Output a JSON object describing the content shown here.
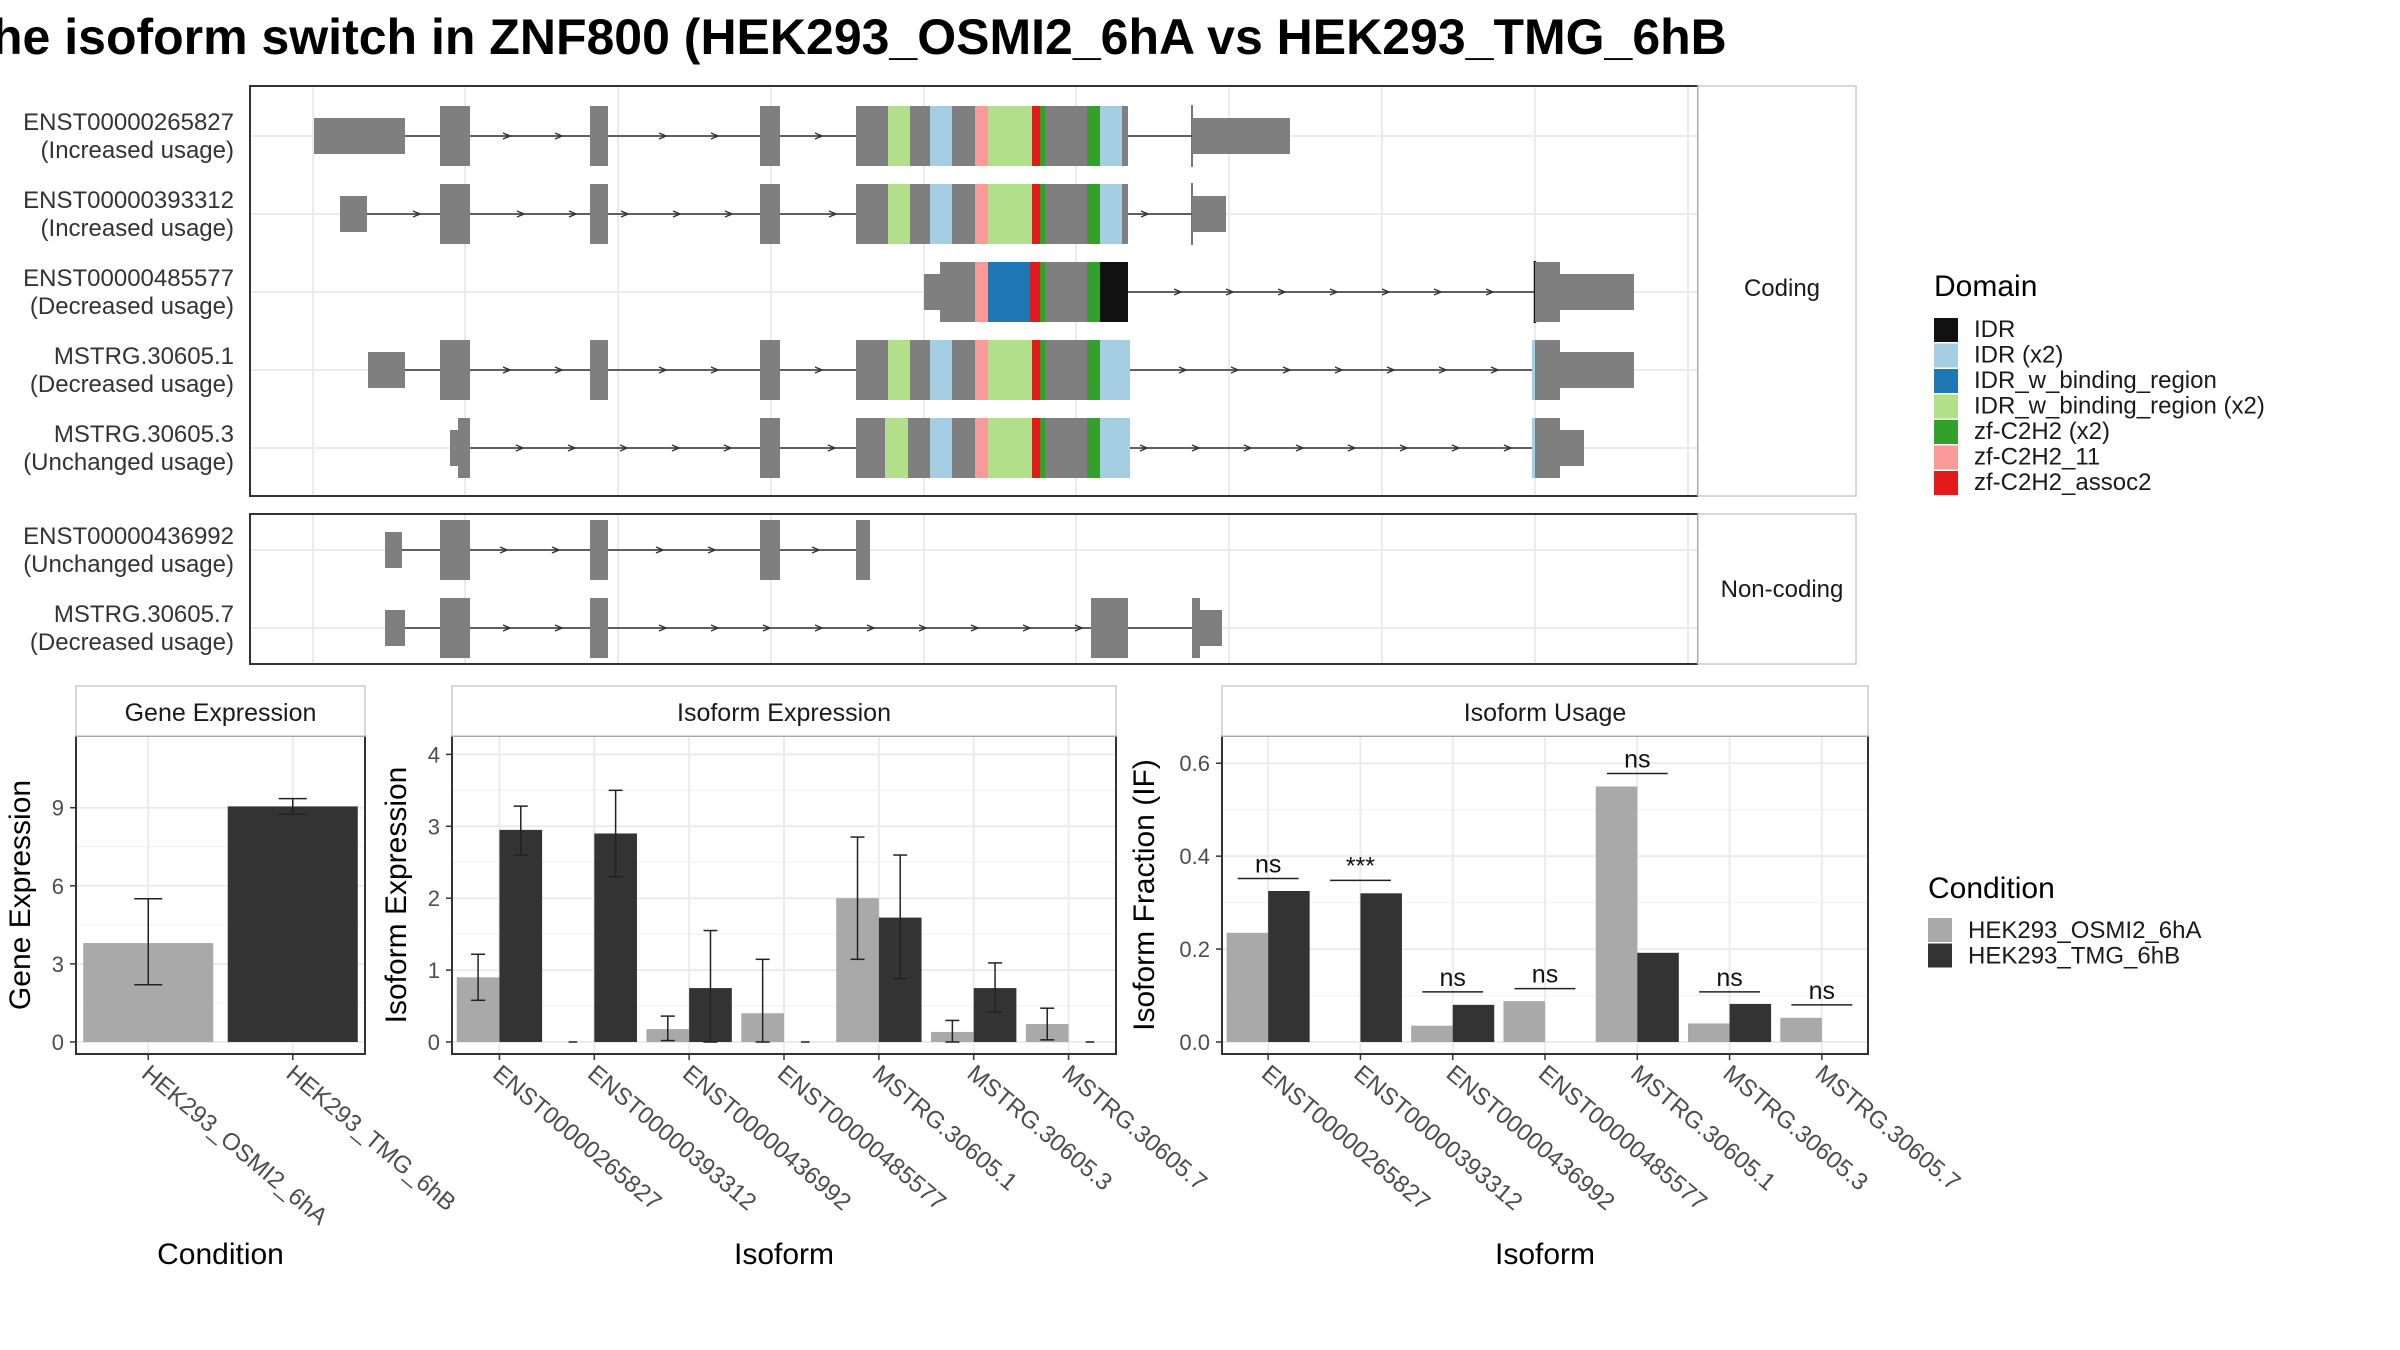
{
  "title": "he isoform switch in ZNF800 (HEK293_OSMI2_6hA vs HEK293_TMG_6hB",
  "colors": {
    "exon": "#7f7f7f",
    "panel_border": "#333333",
    "grid": "#ebebeb",
    "cond_a": "#a9a9a9",
    "cond_b": "#333333",
    "IDR": "#111111",
    "IDR (x2)": "#a6cee3",
    "IDR_w_binding_region": "#1f78b4",
    "IDR_w_binding_region (x2)": "#b2df8a",
    "zf-C2H2 (x2)": "#33a02c",
    "zf-C2H2_11": "#fb9a99",
    "zf-C2H2_assoc2": "#e31a1c"
  },
  "structure": {
    "coding_label": "Coding",
    "noncoding_label": "Non-coding",
    "coding": [
      {
        "id": "ENST00000265827",
        "usage": "(Increased usage)"
      },
      {
        "id": "ENST00000393312",
        "usage": "(Increased usage)"
      },
      {
        "id": "ENST00000485577",
        "usage": "(Decreased usage)"
      },
      {
        "id": "MSTRG.30605.1",
        "usage": "(Decreased usage)"
      },
      {
        "id": "MSTRG.30605.3",
        "usage": "(Unchanged usage)"
      }
    ],
    "noncoding": [
      {
        "id": "ENST00000436992",
        "usage": "(Unchanged usage)"
      },
      {
        "id": "MSTRG.30605.7",
        "usage": "(Decreased usage)"
      }
    ]
  },
  "legend_domain": {
    "title": "Domain",
    "items": [
      "IDR",
      "IDR (x2)",
      "IDR_w_binding_region",
      "IDR_w_binding_region (x2)",
      "zf-C2H2 (x2)",
      "zf-C2H2_11",
      "zf-C2H2_assoc2"
    ]
  },
  "legend_condition": {
    "title": "Condition",
    "items": [
      "HEK293_OSMI2_6hA",
      "HEK293_TMG_6hB"
    ]
  },
  "chart_data": [
    {
      "type": "bar",
      "title": "Gene Expression",
      "xlabel": "Condition",
      "ylabel": "Gene Expression",
      "ylim": [
        0,
        11.6
      ],
      "yticks": [
        0,
        3,
        6,
        9
      ],
      "categories": [
        "HEK293_OSMI2_6hA",
        "HEK293_TMG_6hB"
      ],
      "values": [
        3.8,
        9.05
      ],
      "error_low": [
        2.2,
        8.75
      ],
      "error_high": [
        5.5,
        9.35
      ]
    },
    {
      "type": "bar",
      "title": "Isoform Expression",
      "xlabel": "Isoform",
      "ylabel": "Isoform Expression",
      "ylim": [
        0,
        4.2
      ],
      "yticks": [
        0,
        1,
        2,
        3,
        4
      ],
      "categories": [
        "ENST00000265827",
        "ENST00000393312",
        "ENST00000436992",
        "ENST00000485577",
        "MSTRG.30605.1",
        "MSTRG.30605.3",
        "MSTRG.30605.7"
      ],
      "series": [
        {
          "name": "HEK293_OSMI2_6hA",
          "values": [
            0.9,
            0,
            0.18,
            0.4,
            2.0,
            0.14,
            0.25
          ],
          "error_low": [
            0.58,
            0,
            0.02,
            0,
            1.15,
            0.0,
            0.03
          ],
          "error_high": [
            1.22,
            0,
            0.36,
            1.15,
            2.85,
            0.3,
            0.47
          ]
        },
        {
          "name": "HEK293_TMG_6hB",
          "values": [
            2.95,
            2.9,
            0.75,
            0,
            1.73,
            0.75,
            0
          ],
          "error_low": [
            2.6,
            2.3,
            0,
            0,
            0.88,
            0.42,
            0
          ],
          "error_high": [
            3.28,
            3.5,
            1.55,
            0,
            2.6,
            1.1,
            0
          ]
        }
      ]
    },
    {
      "type": "bar",
      "title": "Isoform Usage",
      "xlabel": "Isoform",
      "ylabel": "Isoform Fraction (IF)",
      "ylim": [
        0,
        0.65
      ],
      "yticks": [
        0.0,
        0.2,
        0.4,
        0.6
      ],
      "categories": [
        "ENST00000265827",
        "ENST00000393312",
        "ENST00000436992",
        "ENST00000485577",
        "MSTRG.30605.1",
        "MSTRG.30605.3",
        "MSTRG.30605.7"
      ],
      "series": [
        {
          "name": "HEK293_OSMI2_6hA",
          "values": [
            0.235,
            0,
            0.035,
            0.088,
            0.55,
            0.04,
            0.052
          ]
        },
        {
          "name": "HEK293_TMG_6hB",
          "values": [
            0.325,
            0.32,
            0.08,
            0,
            0.192,
            0.082,
            0
          ]
        }
      ],
      "significance": [
        "ns",
        "***",
        "ns",
        "ns",
        "ns",
        "ns",
        "ns"
      ],
      "significance_y": [
        0.352,
        0.348,
        0.108,
        0.115,
        0.578,
        0.108,
        0.08
      ]
    }
  ]
}
